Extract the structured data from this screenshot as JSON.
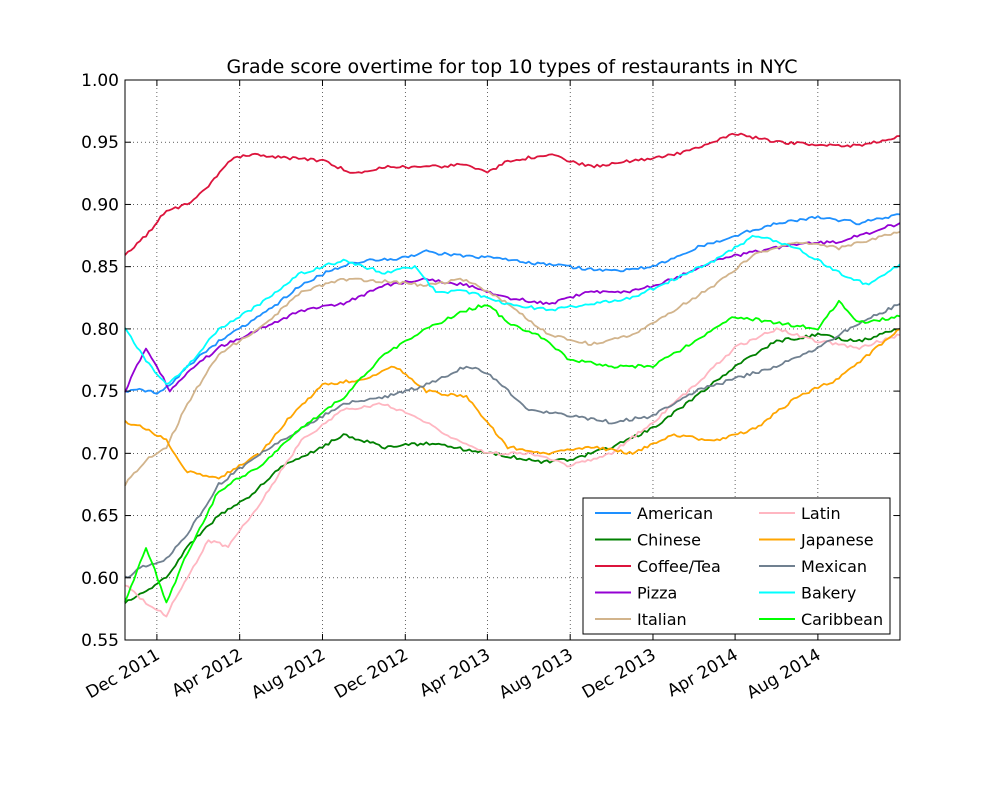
{
  "chart_data": {
    "type": "line",
    "title": "Grade score overtime for top 10 types of restaurants in NYC",
    "xlabel": "",
    "ylabel": "",
    "x_range": [
      "2011-10-15",
      "2014-11-30"
    ],
    "ylim": [
      0.55,
      1.0
    ],
    "y_ticks": [
      "0.55",
      "0.60",
      "0.65",
      "0.70",
      "0.75",
      "0.80",
      "0.85",
      "0.90",
      "0.95",
      "1.00"
    ],
    "x_ticks": [
      {
        "date": "2011-12-01",
        "label": "Dec 2011"
      },
      {
        "date": "2012-04-01",
        "label": "Apr 2012"
      },
      {
        "date": "2012-08-01",
        "label": "Aug 2012"
      },
      {
        "date": "2012-12-01",
        "label": "Dec 2012"
      },
      {
        "date": "2013-04-01",
        "label": "Apr 2013"
      },
      {
        "date": "2013-08-01",
        "label": "Aug 2013"
      },
      {
        "date": "2013-12-01",
        "label": "Dec 2013"
      },
      {
        "date": "2014-04-01",
        "label": "Apr 2014"
      },
      {
        "date": "2014-08-01",
        "label": "Aug 2014"
      }
    ],
    "grid": true,
    "legend_position": "lower-right",
    "series": [
      {
        "name": "American",
        "color": "#1e90ff",
        "points": [
          [
            "2011-10-15",
            0.75
          ],
          [
            "2011-11-01",
            0.752
          ],
          [
            "2011-12-01",
            0.748
          ],
          [
            "2011-12-20",
            0.755
          ],
          [
            "2012-01-15",
            0.77
          ],
          [
            "2012-03-01",
            0.79
          ],
          [
            "2012-05-01",
            0.81
          ],
          [
            "2012-07-01",
            0.835
          ],
          [
            "2012-08-15",
            0.848
          ],
          [
            "2012-10-01",
            0.855
          ],
          [
            "2012-12-01",
            0.857
          ],
          [
            "2013-01-01",
            0.862
          ],
          [
            "2013-03-01",
            0.858
          ],
          [
            "2013-04-15",
            0.857
          ],
          [
            "2013-06-01",
            0.853
          ],
          [
            "2013-08-01",
            0.85
          ],
          [
            "2013-10-01",
            0.846
          ],
          [
            "2013-12-01",
            0.85
          ],
          [
            "2014-02-01",
            0.865
          ],
          [
            "2014-04-01",
            0.875
          ],
          [
            "2014-06-01",
            0.885
          ],
          [
            "2014-08-01",
            0.89
          ],
          [
            "2014-10-01",
            0.885
          ],
          [
            "2014-11-30",
            0.892
          ]
        ]
      },
      {
        "name": "Chinese",
        "color": "#008000",
        "points": [
          [
            "2011-10-15",
            0.58
          ],
          [
            "2011-11-15",
            0.59
          ],
          [
            "2011-12-15",
            0.6
          ],
          [
            "2012-01-15",
            0.625
          ],
          [
            "2012-03-01",
            0.65
          ],
          [
            "2012-04-15",
            0.665
          ],
          [
            "2012-06-01",
            0.69
          ],
          [
            "2012-08-01",
            0.705
          ],
          [
            "2012-09-01",
            0.715
          ],
          [
            "2012-11-01",
            0.705
          ],
          [
            "2013-01-01",
            0.708
          ],
          [
            "2013-03-01",
            0.703
          ],
          [
            "2013-05-01",
            0.698
          ],
          [
            "2013-06-15",
            0.693
          ],
          [
            "2013-08-01",
            0.695
          ],
          [
            "2013-10-01",
            0.705
          ],
          [
            "2013-12-01",
            0.72
          ],
          [
            "2014-02-01",
            0.745
          ],
          [
            "2014-04-01",
            0.77
          ],
          [
            "2014-06-01",
            0.79
          ],
          [
            "2014-08-01",
            0.795
          ],
          [
            "2014-10-01",
            0.79
          ],
          [
            "2014-11-30",
            0.8
          ]
        ]
      },
      {
        "name": "Coffee/Tea",
        "color": "#dc143c",
        "points": [
          [
            "2011-10-15",
            0.86
          ],
          [
            "2011-11-15",
            0.875
          ],
          [
            "2011-12-15",
            0.895
          ],
          [
            "2012-01-15",
            0.9
          ],
          [
            "2012-02-15",
            0.915
          ],
          [
            "2012-03-15",
            0.935
          ],
          [
            "2012-04-15",
            0.94
          ],
          [
            "2012-06-01",
            0.938
          ],
          [
            "2012-08-01",
            0.935
          ],
          [
            "2012-09-15",
            0.925
          ],
          [
            "2012-11-01",
            0.93
          ],
          [
            "2013-01-01",
            0.93
          ],
          [
            "2013-03-01",
            0.932
          ],
          [
            "2013-04-01",
            0.925
          ],
          [
            "2013-05-01",
            0.935
          ],
          [
            "2013-07-01",
            0.94
          ],
          [
            "2013-09-01",
            0.93
          ],
          [
            "2013-11-01",
            0.935
          ],
          [
            "2014-01-01",
            0.94
          ],
          [
            "2014-03-01",
            0.95
          ],
          [
            "2014-04-01",
            0.957
          ],
          [
            "2014-06-01",
            0.95
          ],
          [
            "2014-08-01",
            0.948
          ],
          [
            "2014-10-01",
            0.947
          ],
          [
            "2014-11-30",
            0.955
          ]
        ]
      },
      {
        "name": "Pizza",
        "color": "#9400d3",
        "points": [
          [
            "2011-10-15",
            0.75
          ],
          [
            "2011-11-15",
            0.785
          ],
          [
            "2011-12-01",
            0.77
          ],
          [
            "2011-12-20",
            0.75
          ],
          [
            "2012-01-15",
            0.765
          ],
          [
            "2012-03-01",
            0.785
          ],
          [
            "2012-05-01",
            0.8
          ],
          [
            "2012-07-01",
            0.815
          ],
          [
            "2012-09-01",
            0.82
          ],
          [
            "2012-11-01",
            0.835
          ],
          [
            "2013-01-01",
            0.84
          ],
          [
            "2013-03-01",
            0.835
          ],
          [
            "2013-05-01",
            0.825
          ],
          [
            "2013-07-01",
            0.82
          ],
          [
            "2013-09-01",
            0.83
          ],
          [
            "2013-11-01",
            0.83
          ],
          [
            "2014-01-01",
            0.84
          ],
          [
            "2014-03-01",
            0.855
          ],
          [
            "2014-05-01",
            0.862
          ],
          [
            "2014-07-01",
            0.868
          ],
          [
            "2014-09-01",
            0.87
          ],
          [
            "2014-11-30",
            0.885
          ]
        ]
      },
      {
        "name": "Italian",
        "color": "#d2b48c",
        "points": [
          [
            "2011-10-15",
            0.675
          ],
          [
            "2011-11-15",
            0.695
          ],
          [
            "2011-12-15",
            0.705
          ],
          [
            "2012-01-15",
            0.74
          ],
          [
            "2012-03-01",
            0.78
          ],
          [
            "2012-05-01",
            0.8
          ],
          [
            "2012-07-01",
            0.83
          ],
          [
            "2012-09-01",
            0.84
          ],
          [
            "2012-11-01",
            0.838
          ],
          [
            "2013-01-01",
            0.835
          ],
          [
            "2013-03-01",
            0.84
          ],
          [
            "2013-05-01",
            0.82
          ],
          [
            "2013-07-01",
            0.795
          ],
          [
            "2013-09-01",
            0.788
          ],
          [
            "2013-11-01",
            0.795
          ],
          [
            "2014-01-01",
            0.815
          ],
          [
            "2014-03-01",
            0.835
          ],
          [
            "2014-05-01",
            0.86
          ],
          [
            "2014-07-01",
            0.87
          ],
          [
            "2014-09-01",
            0.865
          ],
          [
            "2014-11-30",
            0.878
          ]
        ]
      },
      {
        "name": "Latin",
        "color": "#ffb6c1",
        "points": [
          [
            "2011-10-15",
            0.595
          ],
          [
            "2011-11-15",
            0.58
          ],
          [
            "2011-12-15",
            0.57
          ],
          [
            "2012-01-15",
            0.6
          ],
          [
            "2012-02-15",
            0.63
          ],
          [
            "2012-03-15",
            0.625
          ],
          [
            "2012-05-01",
            0.66
          ],
          [
            "2012-07-01",
            0.71
          ],
          [
            "2012-09-01",
            0.735
          ],
          [
            "2012-11-01",
            0.74
          ],
          [
            "2013-01-01",
            0.725
          ],
          [
            "2013-02-15",
            0.71
          ],
          [
            "2013-04-01",
            0.7
          ],
          [
            "2013-06-01",
            0.7
          ],
          [
            "2013-08-01",
            0.69
          ],
          [
            "2013-10-01",
            0.7
          ],
          [
            "2013-12-01",
            0.725
          ],
          [
            "2014-02-01",
            0.755
          ],
          [
            "2014-04-01",
            0.785
          ],
          [
            "2014-06-01",
            0.8
          ],
          [
            "2014-08-01",
            0.79
          ],
          [
            "2014-10-01",
            0.785
          ],
          [
            "2014-11-30",
            0.795
          ]
        ]
      },
      {
        "name": "Japanese",
        "color": "#ffa500",
        "points": [
          [
            "2011-10-15",
            0.725
          ],
          [
            "2011-11-15",
            0.72
          ],
          [
            "2011-12-15",
            0.71
          ],
          [
            "2012-01-15",
            0.685
          ],
          [
            "2012-03-01",
            0.68
          ],
          [
            "2012-05-01",
            0.7
          ],
          [
            "2012-06-15",
            0.73
          ],
          [
            "2012-08-01",
            0.755
          ],
          [
            "2012-10-01",
            0.76
          ],
          [
            "2012-11-15",
            0.77
          ],
          [
            "2013-01-01",
            0.75
          ],
          [
            "2013-03-01",
            0.745
          ],
          [
            "2013-05-01",
            0.705
          ],
          [
            "2013-07-01",
            0.7
          ],
          [
            "2013-09-01",
            0.705
          ],
          [
            "2013-11-01",
            0.7
          ],
          [
            "2014-01-01",
            0.715
          ],
          [
            "2014-03-01",
            0.71
          ],
          [
            "2014-05-01",
            0.72
          ],
          [
            "2014-07-01",
            0.745
          ],
          [
            "2014-09-01",
            0.76
          ],
          [
            "2014-11-30",
            0.8
          ]
        ]
      },
      {
        "name": "Mexican",
        "color": "#708090",
        "points": [
          [
            "2011-10-15",
            0.6
          ],
          [
            "2011-11-15",
            0.61
          ],
          [
            "2011-12-15",
            0.615
          ],
          [
            "2012-01-15",
            0.635
          ],
          [
            "2012-03-01",
            0.675
          ],
          [
            "2012-05-01",
            0.7
          ],
          [
            "2012-07-01",
            0.72
          ],
          [
            "2012-09-01",
            0.74
          ],
          [
            "2012-11-01",
            0.745
          ],
          [
            "2013-01-01",
            0.755
          ],
          [
            "2013-03-01",
            0.77
          ],
          [
            "2013-04-01",
            0.765
          ],
          [
            "2013-06-01",
            0.735
          ],
          [
            "2013-08-01",
            0.73
          ],
          [
            "2013-10-01",
            0.725
          ],
          [
            "2013-12-01",
            0.73
          ],
          [
            "2014-02-01",
            0.75
          ],
          [
            "2014-04-01",
            0.76
          ],
          [
            "2014-06-01",
            0.77
          ],
          [
            "2014-08-01",
            0.785
          ],
          [
            "2014-10-01",
            0.805
          ],
          [
            "2014-11-30",
            0.82
          ]
        ]
      },
      {
        "name": "Bakery",
        "color": "#00ffff",
        "points": [
          [
            "2011-10-15",
            0.8
          ],
          [
            "2011-11-15",
            0.775
          ],
          [
            "2011-12-15",
            0.755
          ],
          [
            "2012-01-15",
            0.77
          ],
          [
            "2012-03-01",
            0.8
          ],
          [
            "2012-05-01",
            0.82
          ],
          [
            "2012-07-01",
            0.845
          ],
          [
            "2012-09-01",
            0.855
          ],
          [
            "2012-11-01",
            0.845
          ],
          [
            "2012-12-15",
            0.85
          ],
          [
            "2013-01-15",
            0.83
          ],
          [
            "2013-03-01",
            0.83
          ],
          [
            "2013-05-01",
            0.82
          ],
          [
            "2013-07-01",
            0.815
          ],
          [
            "2013-09-01",
            0.82
          ],
          [
            "2013-11-01",
            0.825
          ],
          [
            "2014-01-01",
            0.84
          ],
          [
            "2014-03-01",
            0.855
          ],
          [
            "2014-05-01",
            0.875
          ],
          [
            "2014-07-01",
            0.865
          ],
          [
            "2014-09-01",
            0.845
          ],
          [
            "2014-10-15",
            0.835
          ],
          [
            "2014-11-30",
            0.852
          ]
        ]
      },
      {
        "name": "Caribbean",
        "color": "#00ff00",
        "points": [
          [
            "2011-10-15",
            0.58
          ],
          [
            "2011-11-15",
            0.625
          ],
          [
            "2011-12-15",
            0.58
          ],
          [
            "2012-01-15",
            0.62
          ],
          [
            "2012-03-01",
            0.67
          ],
          [
            "2012-05-01",
            0.69
          ],
          [
            "2012-07-01",
            0.72
          ],
          [
            "2012-09-01",
            0.745
          ],
          [
            "2012-11-01",
            0.78
          ],
          [
            "2013-01-01",
            0.8
          ],
          [
            "2013-03-01",
            0.815
          ],
          [
            "2013-04-01",
            0.82
          ],
          [
            "2013-05-01",
            0.805
          ],
          [
            "2013-06-15",
            0.795
          ],
          [
            "2013-08-01",
            0.775
          ],
          [
            "2013-10-01",
            0.77
          ],
          [
            "2013-12-01",
            0.77
          ],
          [
            "2014-02-01",
            0.79
          ],
          [
            "2014-04-01",
            0.81
          ],
          [
            "2014-06-01",
            0.805
          ],
          [
            "2014-08-01",
            0.8
          ],
          [
            "2014-09-01",
            0.822
          ],
          [
            "2014-10-01",
            0.805
          ],
          [
            "2014-11-30",
            0.81
          ]
        ]
      }
    ]
  }
}
